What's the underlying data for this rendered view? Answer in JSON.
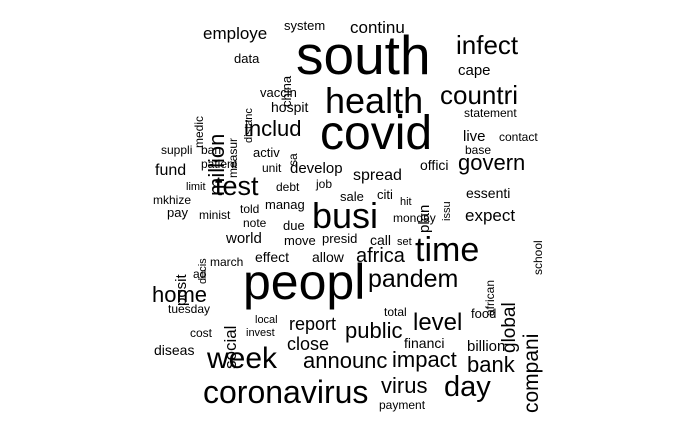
{
  "text_color": "#000000",
  "background_color": "#ffffff",
  "words": [
    "south",
    "covid",
    "peopl",
    "health",
    "busi",
    "time",
    "infect",
    "countri",
    "pandem",
    "coronavirus",
    "week",
    "day",
    "includ",
    "test",
    "million",
    "govern",
    "level",
    "compani",
    "bank",
    "africa",
    "home",
    "public",
    "announc",
    "impact",
    "virus",
    "global",
    "report",
    "close",
    "cape",
    "continu",
    "employe",
    "expect",
    "fund",
    "spread",
    "develop",
    "social",
    "live",
    "billion",
    "financi",
    "posit",
    "world",
    "effect",
    "allow",
    "call",
    "presid",
    "move",
    "due",
    "sale",
    "citi",
    "plan",
    "essenti",
    "offici",
    "system",
    "china",
    "data",
    "hospit",
    "vaccin",
    "measur",
    "medic",
    "distanc",
    "statement",
    "contact",
    "base",
    "suppli",
    "ban",
    "activ",
    "sa",
    "patient",
    "unit",
    "limit",
    "debt",
    "job",
    "manag",
    "told",
    "note",
    "decis",
    "minist",
    "pay",
    "mkhize",
    "hit",
    "issu",
    "monday",
    "school",
    "african",
    "set",
    "march",
    "ad",
    "tuesday",
    "local",
    "invest",
    "cost",
    "diseas",
    "total",
    "food",
    "payment"
  ]
}
